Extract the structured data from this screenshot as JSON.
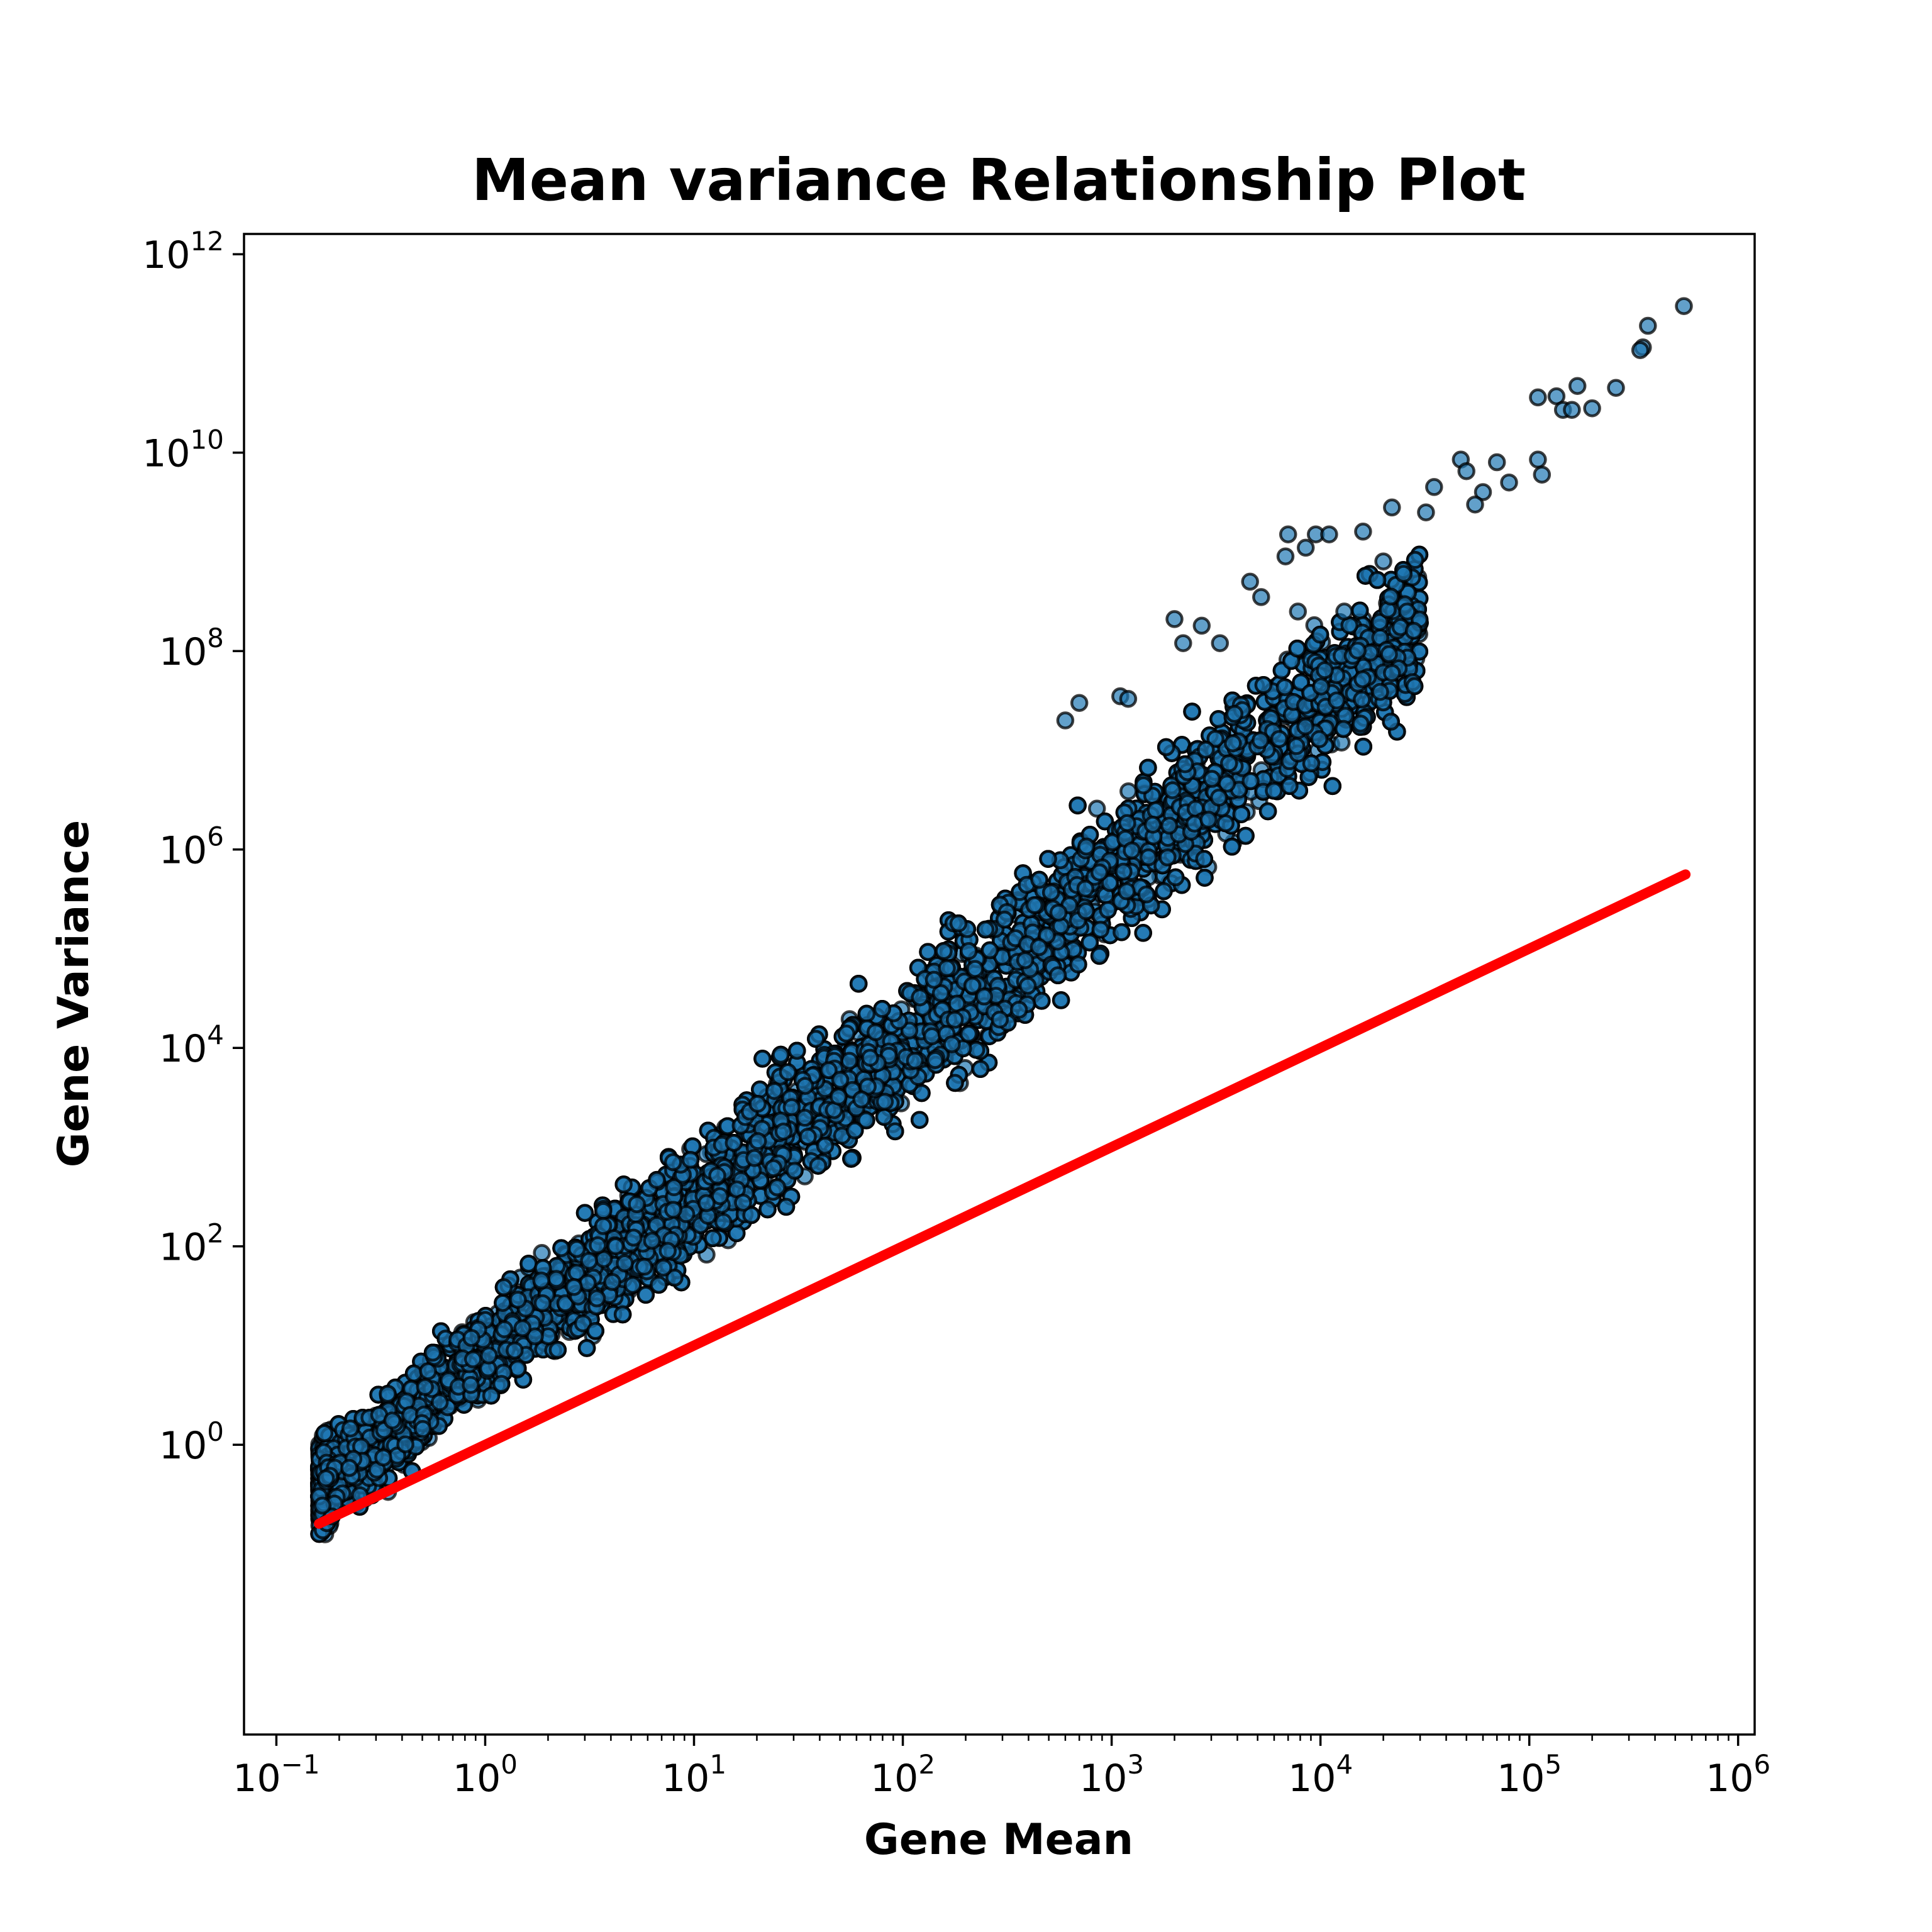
{
  "chart_data": {
    "type": "scatter",
    "title": "Mean variance Relationship Plot",
    "xlabel": "Gene Mean",
    "ylabel": "Gene Variance",
    "x_scale": "log",
    "y_scale": "log",
    "xlim": [
      0.07,
      1200000
    ],
    "ylim": [
      0.0012,
      1600000000000.0
    ],
    "grid": false,
    "legend": "none",
    "x_ticks": [
      {
        "base": "10",
        "exp": "−1",
        "value": 0.1
      },
      {
        "base": "10",
        "exp": "0",
        "value": 1
      },
      {
        "base": "10",
        "exp": "1",
        "value": 10
      },
      {
        "base": "10",
        "exp": "2",
        "value": 100
      },
      {
        "base": "10",
        "exp": "3",
        "value": 1000
      },
      {
        "base": "10",
        "exp": "4",
        "value": 10000
      },
      {
        "base": "10",
        "exp": "5",
        "value": 100000
      },
      {
        "base": "10",
        "exp": "6",
        "value": 1000000
      }
    ],
    "y_ticks": [
      {
        "base": "10",
        "exp": "0",
        "value": 1
      },
      {
        "base": "10",
        "exp": "2",
        "value": 100
      },
      {
        "base": "10",
        "exp": "4",
        "value": 10000
      },
      {
        "base": "10",
        "exp": "6",
        "value": 1000000
      },
      {
        "base": "10",
        "exp": "8",
        "value": 100000000
      },
      {
        "base": "10",
        "exp": "10",
        "value": 10000000000
      },
      {
        "base": "10",
        "exp": "12",
        "value": 1000000000000
      }
    ],
    "series": [
      {
        "type": "scatter",
        "color": "#1f77b4",
        "edge_color": "#000000",
        "alpha": 0.7,
        "description_of_bulk": "dense cloud: log10(variance) ≈ 1.75·log10(mean) + 0.65 ± 0.95, means from 0.16 to 3e4",
        "bulk_fit": {
          "slope": 1.75,
          "intercept": 0.65,
          "spread": 0.95,
          "x_min": 0.16,
          "x_max": 30000
        },
        "points": [
          [
            550000,
            300000000000.0
          ],
          [
            370000,
            190000000000.0
          ],
          [
            350000,
            115000000000.0
          ],
          [
            340000,
            108000000000.0
          ],
          [
            110000,
            36000000000.0
          ],
          [
            135000,
            37000000000.0
          ],
          [
            170000,
            47000000000.0
          ],
          [
            260000,
            45000000000.0
          ],
          [
            145000,
            27000000000.0
          ],
          [
            160000,
            27000000000.0
          ],
          [
            200000,
            28000000000.0
          ],
          [
            110000,
            8500000000.0
          ],
          [
            115000,
            6000000000.0
          ],
          [
            80000,
            5000000000.0
          ],
          [
            70000,
            8000000000.0
          ],
          [
            47000,
            8500000000.0
          ],
          [
            50000,
            6500000000.0
          ],
          [
            60000,
            4000000000.0
          ],
          [
            55000,
            3000000000.0
          ],
          [
            35000,
            4500000000.0
          ],
          [
            32000,
            2500000000.0
          ],
          [
            22000,
            2800000000.0
          ],
          [
            7000,
            1500000000.0
          ],
          [
            9500,
            1500000000.0
          ],
          [
            11000,
            1500000000.0
          ],
          [
            8500,
            1100000000.0
          ],
          [
            6800,
            900000000.0
          ],
          [
            4600,
            500000000.0
          ],
          [
            5200,
            350000000.0
          ],
          [
            7800,
            250000000.0
          ],
          [
            16000,
            1600000000.0
          ],
          [
            20000,
            800000000.0
          ],
          [
            25000,
            600000000.0
          ],
          [
            28000,
            160000000.0
          ],
          [
            2000,
            210000000.0
          ],
          [
            2700,
            180000000.0
          ],
          [
            3300,
            120000000.0
          ],
          [
            2200,
            120000000.0
          ],
          [
            1100,
            35000000.0
          ],
          [
            1200,
            33000000.0
          ],
          [
            700,
            30000000.0
          ],
          [
            600,
            20000000.0
          ],
          [
            22000,
            60000000.0
          ],
          [
            26000,
            250000000.0
          ],
          [
            13000,
            250000000.0
          ]
        ]
      },
      {
        "type": "line",
        "color": "#ff0000",
        "label_relation": "variance = mean",
        "x": [
          0.16,
          560000
        ],
        "y": [
          0.16,
          560000
        ]
      }
    ]
  }
}
